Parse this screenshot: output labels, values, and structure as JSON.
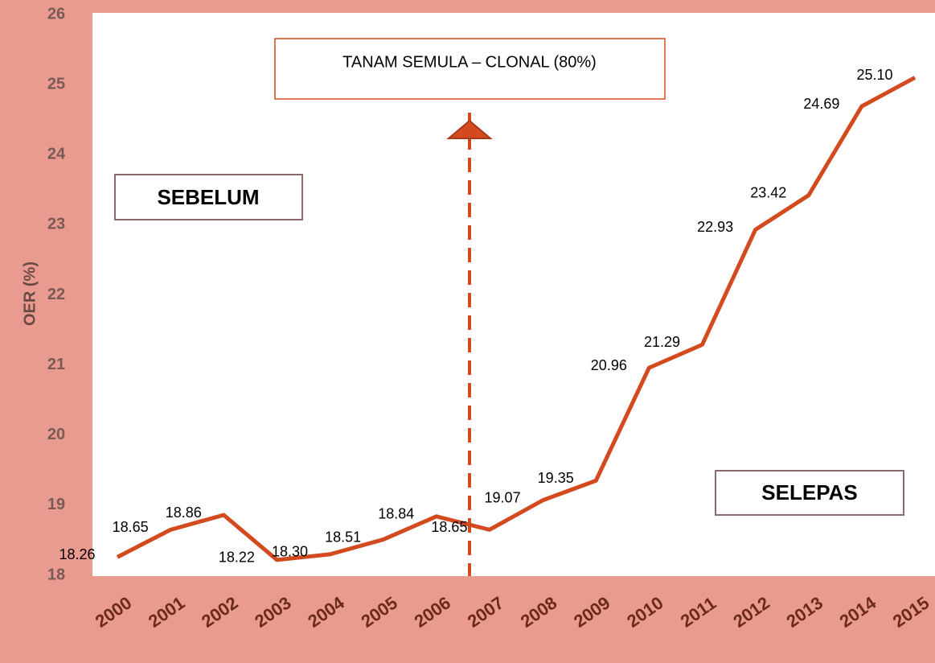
{
  "chart_data": {
    "type": "line",
    "y_label": "OER (%)",
    "categories": [
      "2000",
      "2001",
      "2002",
      "2003",
      "2004",
      "2005",
      "2006",
      "2007",
      "2008",
      "2009",
      "2010",
      "2011",
      "2012",
      "2013",
      "2014",
      "2015"
    ],
    "series": [
      {
        "color": "#d24a1e",
        "values": [
          18.26,
          18.65,
          18.86,
          18.22,
          18.3,
          18.51,
          18.84,
          18.65,
          19.07,
          19.35,
          20.96,
          21.29,
          22.93,
          23.42,
          24.69,
          25.1
        ],
        "value_labels": [
          "18.26",
          "18.65",
          "18.86",
          "18.22",
          "18.30",
          "18.51",
          "18.84",
          "18.65",
          "19.07",
          "19.35",
          "20.96",
          "21.29",
          "22.93",
          "23.42",
          "24.69",
          "25.10"
        ]
      }
    ],
    "ylim": [
      18,
      26
    ],
    "yticks": [
      18,
      19,
      20,
      21,
      22,
      23,
      24,
      25,
      26
    ],
    "grid": false,
    "annotations": {
      "event": "TANAM SEMULA – CLONAL (80%)",
      "before": "SEBELUM",
      "after": "SELEPAS"
    }
  }
}
